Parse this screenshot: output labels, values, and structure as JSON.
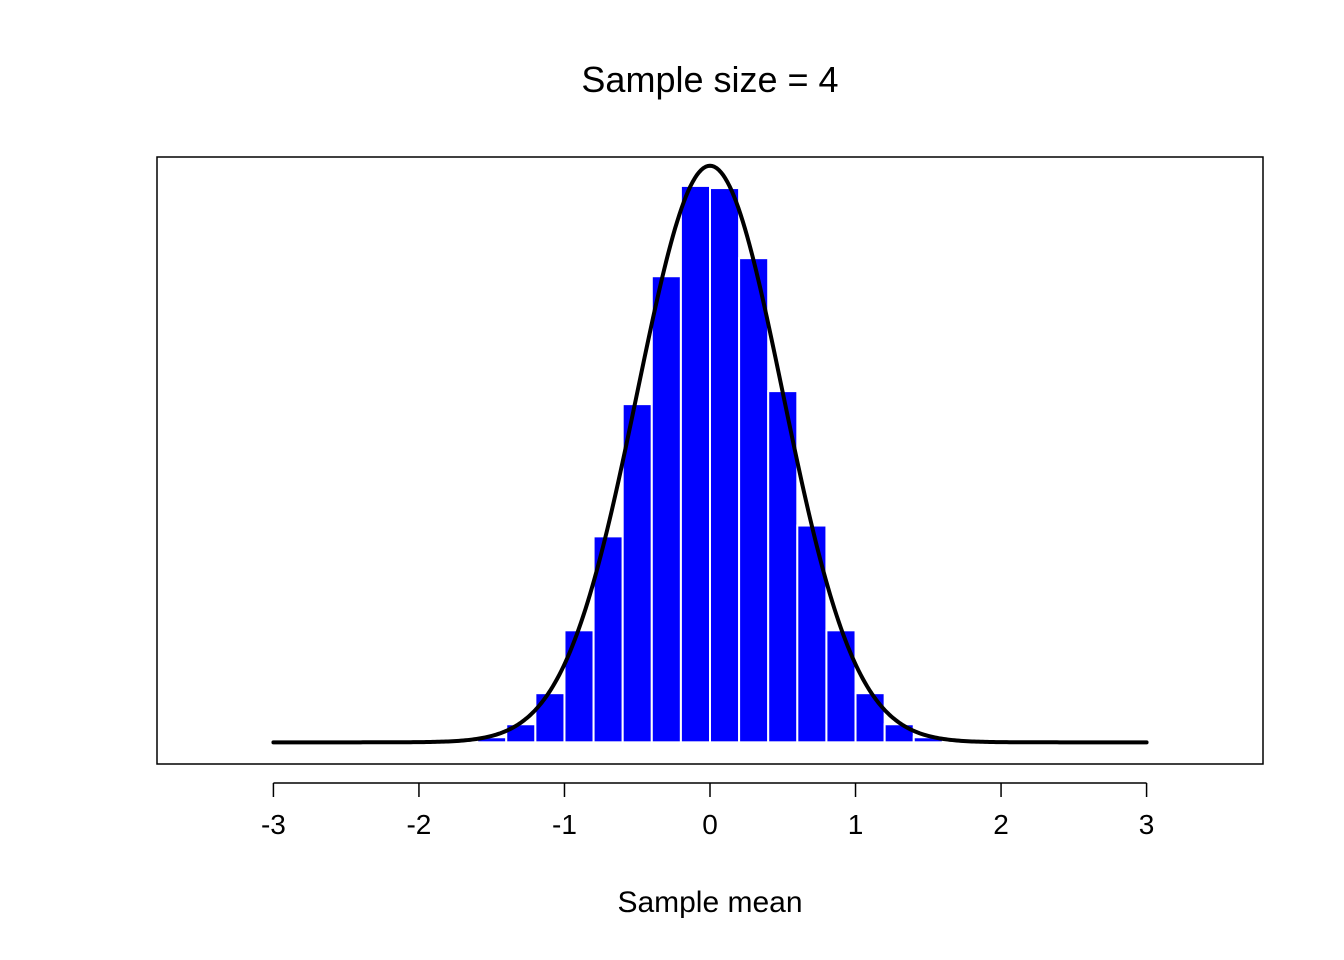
{
  "chart_data": {
    "type": "bar",
    "title": "Sample size = 4",
    "xlabel": "Sample mean",
    "ylabel": "",
    "xlim": [
      -3.8,
      3.8
    ],
    "ylim": [
      -0.03,
      0.81
    ],
    "x_ticks": [
      "-3",
      "-2",
      "-1",
      "0",
      "1",
      "2",
      "3"
    ],
    "bar_color": "#0000ff",
    "bar_border_color": "#ffffff",
    "curve_color": "#000000",
    "grid": false,
    "legend": "none",
    "y_axis_shown": false,
    "histogram": {
      "bin_width": 0.2,
      "bins": [
        {
          "from": -1.6,
          "to": -1.4,
          "density": 0.007
        },
        {
          "from": -1.4,
          "to": -1.2,
          "density": 0.025
        },
        {
          "from": -1.2,
          "to": -1.0,
          "density": 0.068
        },
        {
          "from": -1.0,
          "to": -0.8,
          "density": 0.155
        },
        {
          "from": -0.8,
          "to": -0.6,
          "density": 0.285
        },
        {
          "from": -0.6,
          "to": -0.4,
          "density": 0.468
        },
        {
          "from": -0.4,
          "to": -0.2,
          "density": 0.645
        },
        {
          "from": -0.2,
          "to": 0.0,
          "density": 0.77
        },
        {
          "from": 0.0,
          "to": 0.2,
          "density": 0.767
        },
        {
          "from": 0.2,
          "to": 0.4,
          "density": 0.67
        },
        {
          "from": 0.4,
          "to": 0.6,
          "density": 0.486
        },
        {
          "from": 0.6,
          "to": 0.8,
          "density": 0.3
        },
        {
          "from": 0.8,
          "to": 1.0,
          "density": 0.155
        },
        {
          "from": 1.0,
          "to": 1.2,
          "density": 0.068
        },
        {
          "from": 1.2,
          "to": 1.4,
          "density": 0.025
        },
        {
          "from": 1.4,
          "to": 1.6,
          "density": 0.007
        }
      ]
    },
    "curve": {
      "type": "normal-density",
      "mean": 0,
      "sd": 0.5,
      "x_range": [
        -3,
        3
      ]
    }
  }
}
